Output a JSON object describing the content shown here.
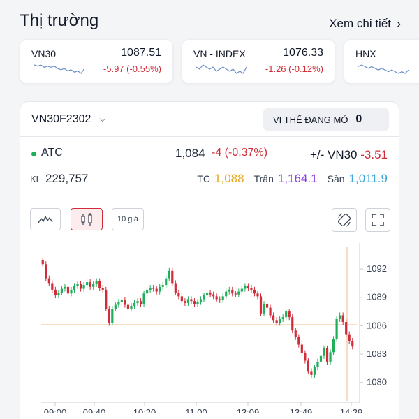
{
  "market": {
    "title": "Thị trường",
    "see_more": "Xem chi tiết",
    "indices": [
      {
        "name": "VN30",
        "value": "1087.51",
        "change": "-5.97 (-0.55%)",
        "spark": [
          5,
          6,
          5,
          7,
          6,
          7,
          6,
          8,
          9,
          8,
          10,
          9,
          11,
          10,
          12,
          8
        ]
      },
      {
        "name": "VN - INDEX",
        "value": "1076.33",
        "change": "-1.26 (-0.12%)",
        "spark": [
          6,
          7,
          5,
          6,
          7,
          6,
          8,
          7,
          6,
          7,
          8,
          7,
          9,
          8,
          9,
          6
        ]
      },
      {
        "name": "HNX",
        "value": "",
        "change": "",
        "spark": [
          6,
          5,
          6,
          7,
          6,
          7,
          8,
          7,
          8,
          9,
          8,
          9,
          10,
          9,
          10,
          8
        ]
      }
    ]
  },
  "contract": {
    "code": "VN30F2302",
    "open_position_label": "VỊ THẾ ĐANG MỞ",
    "open_position_value": "0",
    "session": "ATC",
    "price": "1,084",
    "change": "-4 (-0,37%)",
    "basis_label": "+/- VN30",
    "basis_value": "-3.51",
    "volume_label": "KL",
    "volume": "229,757",
    "ref_label": "TC",
    "ref_value": "1,088",
    "ceiling_label": "Trần",
    "ceiling_value": "1,164.1",
    "floor_label": "Sàn",
    "floor_value": "1,011.9"
  },
  "toolbar": {
    "price_10_label": "10 giá"
  },
  "colors": {
    "up": "#1fae5a",
    "down": "#d02d39",
    "reference": "#e5a823",
    "ceiling": "#8a3ee0",
    "floor": "#3ea7d8"
  },
  "chart_data": {
    "type": "candlestick",
    "y_ticks": [
      1080,
      1083,
      1086,
      1089,
      1092
    ],
    "ylim": [
      1078.5,
      1094
    ],
    "x_ticks": [
      "09:00",
      "09:40",
      "10:20",
      "11:00",
      "13:09",
      "13:49",
      "14:29"
    ],
    "reference_line": 1086.1,
    "closes": [
      1092.5,
      1091,
      1090.5,
      1089.8,
      1089.2,
      1089.5,
      1089.9,
      1090.1,
      1089.4,
      1089.8,
      1090.2,
      1090.4,
      1089.9,
      1090.3,
      1090.6,
      1090.1,
      1090.4,
      1090.7,
      1090,
      1089.8,
      1087.8,
      1086.3,
      1087.8,
      1088.2,
      1088.5,
      1088.7,
      1088.2,
      1087.8,
      1088.1,
      1088.4,
      1088.6,
      1088.3,
      1089.4,
      1089.8,
      1090,
      1089.9,
      1089.6,
      1090.1,
      1090.3,
      1091,
      1091.8,
      1090.5,
      1089.5,
      1089.1,
      1088.6,
      1088.4,
      1088.8,
      1088.6,
      1088.3,
      1088.5,
      1088.8,
      1089.2,
      1089.5,
      1089.3,
      1089.1,
      1088.8,
      1088.7,
      1089.1,
      1089.6,
      1089.8,
      1089.4,
      1089.3,
      1089.6,
      1089.9,
      1090.2,
      1090,
      1089.8,
      1089.4,
      1089.1,
      1087.3,
      1088.3,
      1087.9,
      1087.1,
      1086.6,
      1086.3,
      1086.7,
      1086.9,
      1087.5,
      1086.9,
      1085.5,
      1084.8,
      1084,
      1083.1,
      1082.3,
      1081.2,
      1080.8,
      1081.6,
      1082.2,
      1082.8,
      1083.6,
      1082.2,
      1083.2,
      1084.6,
      1086.7,
      1087.1,
      1086.4,
      1085.1,
      1084.4,
      1083.8
    ]
  }
}
